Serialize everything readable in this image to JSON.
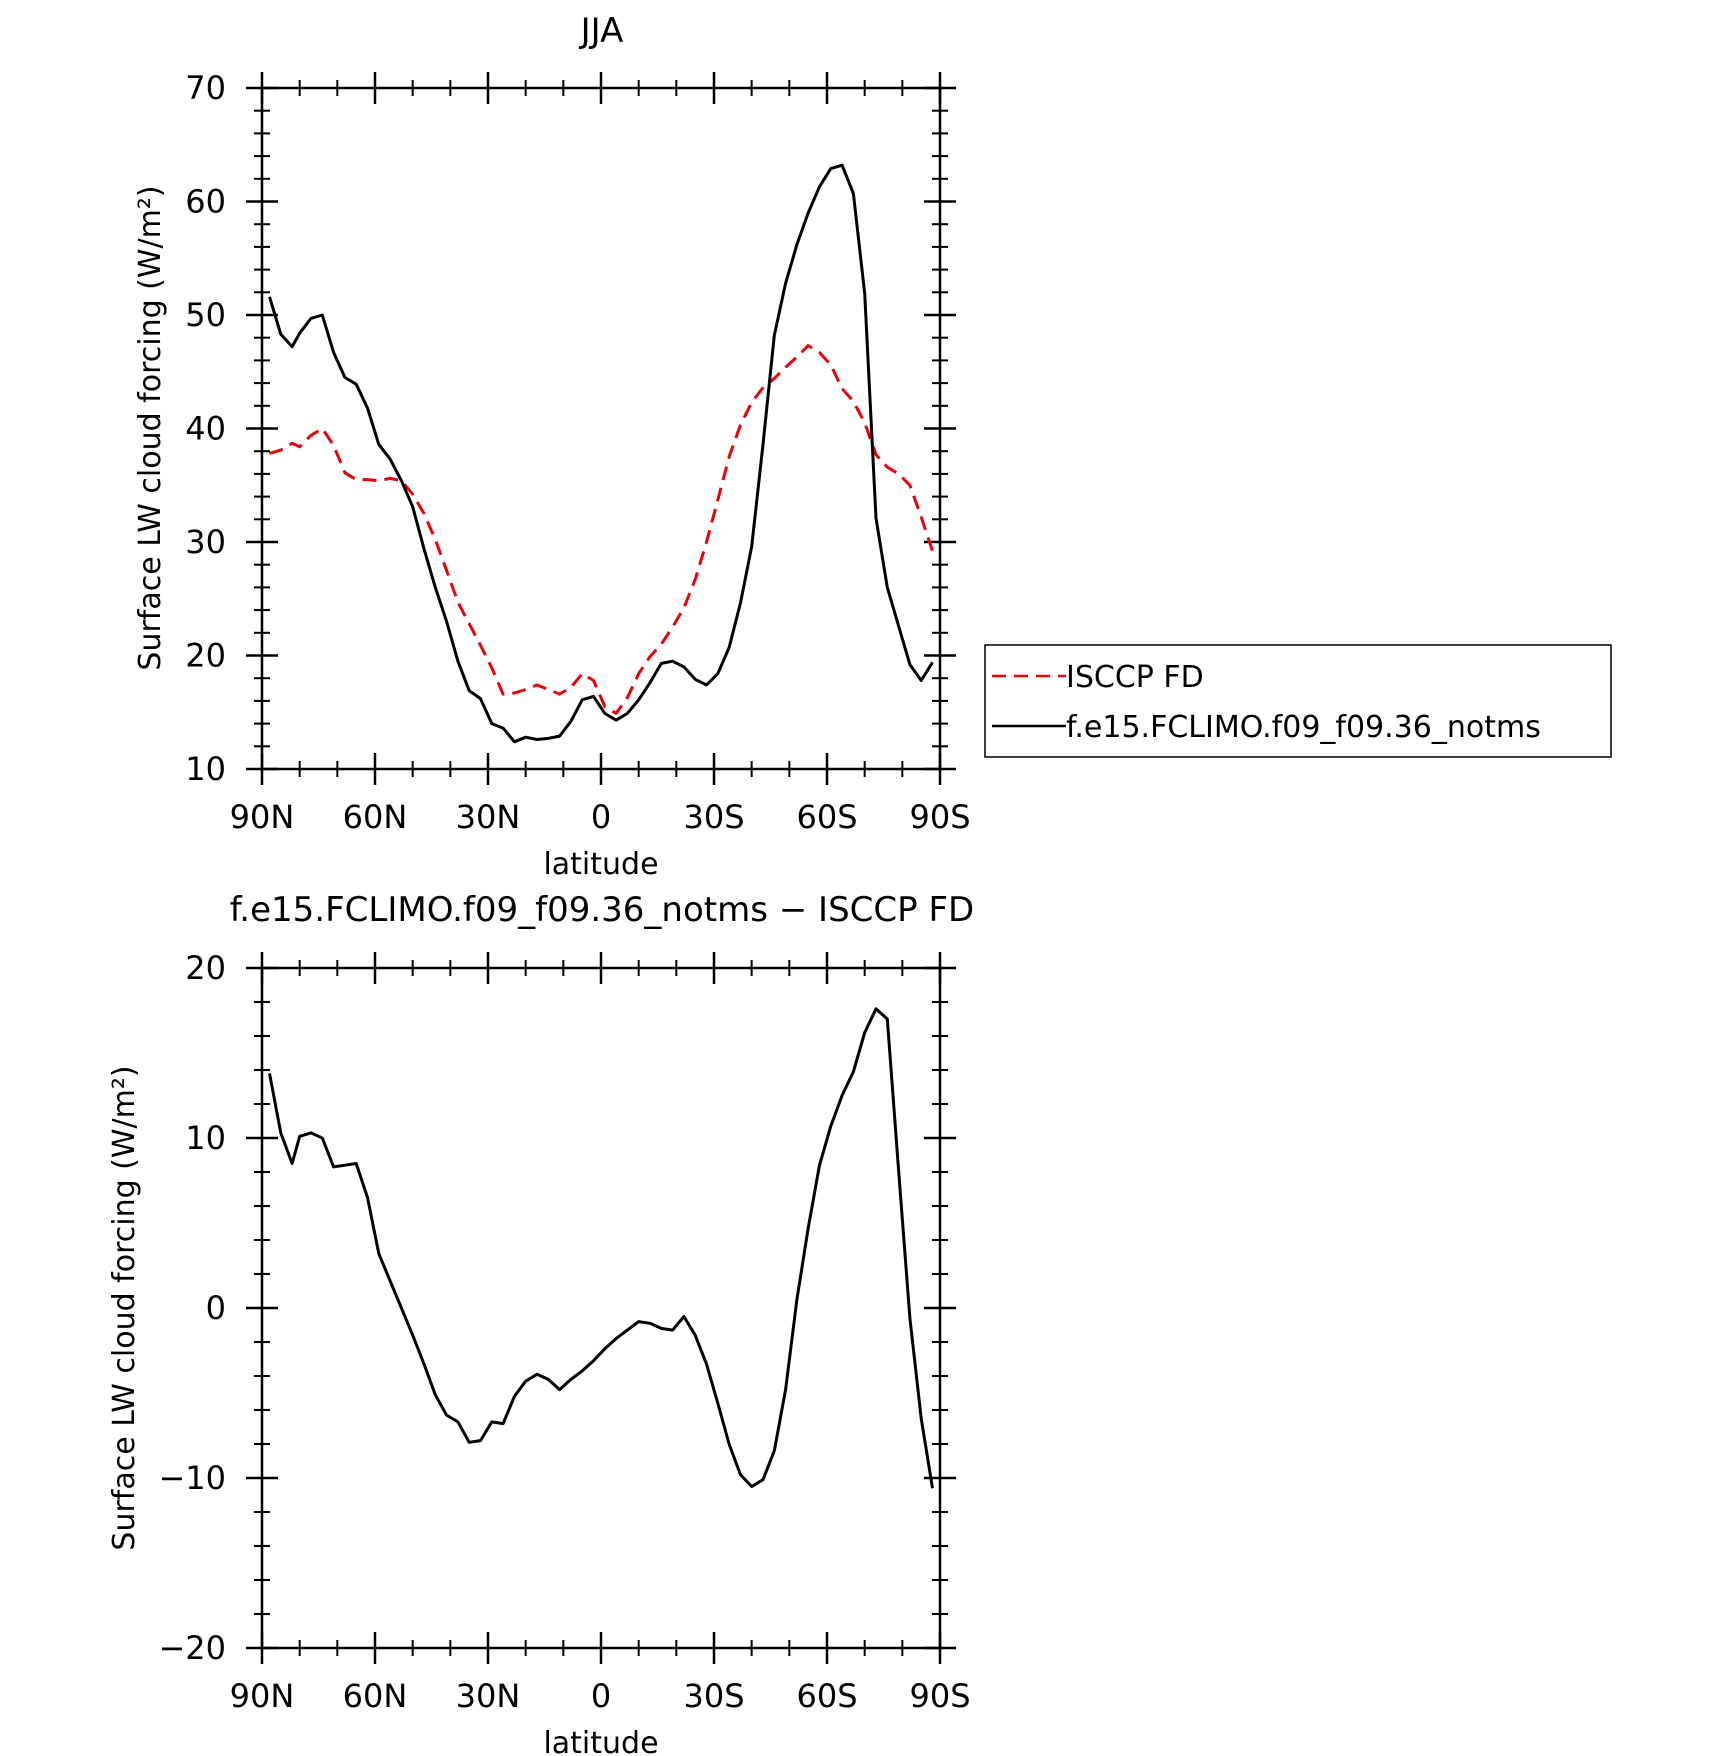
{
  "chart_data": [
    {
      "type": "line",
      "title": "JJA",
      "xlabel": "latitude",
      "ylabel": "Surface LW cloud forcing (W/m²)",
      "xlim": [
        90,
        -90
      ],
      "ylim": [
        10,
        70
      ],
      "xticks": [
        90,
        60,
        30,
        0,
        -30,
        -60,
        -90
      ],
      "xtick_labels": [
        "90N",
        "60N",
        "30N",
        "0",
        "30S",
        "60S",
        "90S"
      ],
      "yticks": [
        10,
        20,
        30,
        40,
        50,
        60,
        70
      ],
      "ytick_labels": [
        "10",
        "20",
        "30",
        "40",
        "50",
        "60",
        "70"
      ],
      "legend_position": "right",
      "series": [
        {
          "name": "ISCCP FD",
          "color": "#e8000b",
          "dash": "dashed",
          "x": [
            88,
            85,
            82,
            80,
            77,
            74,
            71,
            68,
            65,
            62,
            59,
            56,
            53,
            50,
            47,
            44,
            41,
            38,
            35,
            32,
            29,
            26,
            23,
            20,
            17,
            14,
            11,
            8,
            5,
            2,
            -1,
            -4,
            -7,
            -10,
            -13,
            -16,
            -19,
            -22,
            -25,
            -28,
            -31,
            -34,
            -37,
            -40,
            -43,
            -46,
            -49,
            -52,
            -55,
            -58,
            -61,
            -64,
            -67,
            -70,
            -73,
            -76,
            -79,
            -82,
            -85,
            -88
          ],
          "y": [
            37.8,
            38.1,
            38.7,
            38.4,
            39.4,
            40.0,
            38.5,
            36.1,
            35.5,
            35.5,
            35.4,
            35.6,
            35.4,
            34.2,
            32.5,
            30.2,
            27.5,
            24.7,
            22.8,
            20.9,
            18.9,
            16.6,
            16.7,
            17.0,
            17.4,
            17.0,
            16.6,
            17.2,
            18.4,
            17.8,
            15.5,
            14.9,
            16.3,
            18.4,
            19.9,
            21.0,
            22.5,
            24.2,
            26.7,
            30.0,
            33.7,
            37.5,
            40.3,
            42.3,
            43.6,
            44.4,
            45.4,
            46.3,
            47.3,
            46.7,
            45.6,
            43.5,
            42.4,
            40.5,
            37.7,
            36.6,
            36.0,
            35.0,
            32.2,
            29.2
          ]
        },
        {
          "name": "f.e15.FCLIMO.f09_f09.36_notms",
          "color": "#000000",
          "dash": "solid",
          "x": [
            88,
            85,
            82,
            80,
            77,
            74,
            71,
            68,
            65,
            62,
            59,
            56,
            53,
            50,
            47,
            44,
            41,
            38,
            35,
            32,
            29,
            26,
            23,
            20,
            17,
            14,
            11,
            8,
            5,
            2,
            -1,
            -4,
            -7,
            -10,
            -13,
            -16,
            -19,
            -22,
            -25,
            -28,
            -31,
            -34,
            -37,
            -40,
            -43,
            -46,
            -49,
            -52,
            -55,
            -58,
            -61,
            -64,
            -67,
            -70,
            -73,
            -76,
            -79,
            -82,
            -85,
            -88
          ],
          "y": [
            51.6,
            48.3,
            47.2,
            48.4,
            49.7,
            50.0,
            46.7,
            44.5,
            43.9,
            41.8,
            38.6,
            37.3,
            35.4,
            33.1,
            29.4,
            26.0,
            23.0,
            19.5,
            16.9,
            16.2,
            14.0,
            13.6,
            12.4,
            12.8,
            12.6,
            12.7,
            12.9,
            14.2,
            16.1,
            16.4,
            14.9,
            14.3,
            14.9,
            16.1,
            17.6,
            19.3,
            19.5,
            19.0,
            17.9,
            17.4,
            18.4,
            20.7,
            24.6,
            29.6,
            38.6,
            48.2,
            52.8,
            56.2,
            59.0,
            61.3,
            62.9,
            63.2,
            60.7,
            51.9,
            32.1,
            26.0,
            22.6,
            19.2,
            17.8,
            19.4
          ]
        }
      ]
    },
    {
      "type": "line",
      "title": "f.e15.FCLIMO.f09_f09.36_notms − ISCCP FD",
      "xlabel": "latitude",
      "ylabel": "Surface LW cloud forcing (W/m²)",
      "xlim": [
        90,
        -90
      ],
      "ylim": [
        -20,
        20
      ],
      "xticks": [
        90,
        60,
        30,
        0,
        -30,
        -60,
        -90
      ],
      "xtick_labels": [
        "90N",
        "60N",
        "30N",
        "0",
        "30S",
        "60S",
        "90S"
      ],
      "yticks": [
        -20,
        -10,
        0,
        10,
        20
      ],
      "ytick_labels": [
        "−20",
        "−10",
        "0",
        "10",
        "20"
      ],
      "series": [
        {
          "color": "#000000",
          "dash": "solid",
          "x": [
            88,
            85,
            82,
            80,
            77,
            74,
            71,
            68,
            65,
            62,
            59,
            56,
            53,
            50,
            47,
            44,
            41,
            38,
            35,
            32,
            29,
            26,
            23,
            20,
            17,
            14,
            11,
            8,
            5,
            2,
            -1,
            -4,
            -7,
            -10,
            -13,
            -16,
            -19,
            -22,
            -25,
            -28,
            -31,
            -34,
            -37,
            -40,
            -43,
            -46,
            -49,
            -52,
            -55,
            -58,
            -61,
            -64,
            -67,
            -70,
            -73,
            -76,
            -79,
            -82,
            -85,
            -88
          ],
          "y": [
            13.8,
            10.3,
            8.5,
            10.1,
            10.3,
            10.0,
            8.3,
            8.4,
            8.5,
            6.5,
            3.2,
            1.6,
            0.0,
            -1.6,
            -3.3,
            -5.1,
            -6.3,
            -6.7,
            -7.9,
            -7.8,
            -6.7,
            -6.8,
            -5.2,
            -4.3,
            -3.9,
            -4.2,
            -4.8,
            -4.2,
            -3.7,
            -3.1,
            -2.4,
            -1.8,
            -1.3,
            -0.8,
            -0.9,
            -1.2,
            -1.3,
            -0.5,
            -1.6,
            -3.3,
            -5.6,
            -8.0,
            -9.8,
            -10.5,
            -10.1,
            -8.4,
            -4.8,
            0.5,
            4.7,
            8.4,
            10.7,
            12.5,
            13.9,
            16.2,
            17.6,
            17.0,
            8.1,
            -0.6,
            -6.5,
            -10.6
          ]
        }
      ]
    }
  ]
}
